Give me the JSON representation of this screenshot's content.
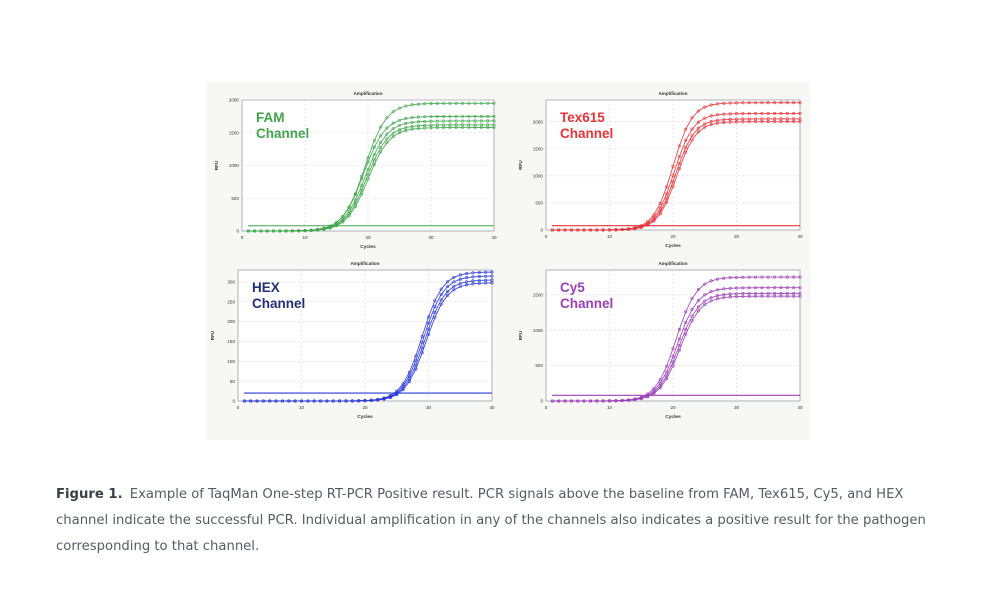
{
  "chart_data": [
    {
      "type": "line",
      "title": "Amplification",
      "xlabel": "Cycles",
      "ylabel": "RFU",
      "xlim": [
        0,
        40
      ],
      "ylim": [
        0,
        2000
      ],
      "xticks": [
        0,
        10,
        20,
        30,
        40
      ],
      "yticks": [
        0,
        500,
        1000,
        1500,
        2000
      ],
      "threshold": 80,
      "channel_label": [
        "FAM",
        "Channel"
      ],
      "color": "#3fa64b",
      "grid": true,
      "series": [
        {
          "plateau": 1950,
          "midpoint": 19.5,
          "slope": 1.7
        },
        {
          "plateau": 1750,
          "midpoint": 19.3,
          "slope": 1.7
        },
        {
          "plateau": 1680,
          "midpoint": 19.6,
          "slope": 1.7
        },
        {
          "plateau": 1620,
          "midpoint": 19.8,
          "slope": 1.7
        },
        {
          "plateau": 1580,
          "midpoint": 20.0,
          "slope": 1.7
        }
      ]
    },
    {
      "type": "line",
      "title": "Amplification",
      "xlabel": "Cycles",
      "ylabel": "RFU",
      "xlim": [
        0,
        40
      ],
      "ylim": [
        0,
        2400
      ],
      "xticks": [
        0,
        10,
        20,
        30,
        40
      ],
      "yticks": [
        0,
        500,
        1000,
        1500,
        2000
      ],
      "threshold": 80,
      "channel_label": [
        "Tex615",
        "Channel"
      ],
      "color": "#e8333a",
      "grid": true,
      "series": [
        {
          "plateau": 2350,
          "midpoint": 20.0,
          "slope": 1.5
        },
        {
          "plateau": 2150,
          "midpoint": 20.2,
          "slope": 1.5
        },
        {
          "plateau": 2050,
          "midpoint": 20.4,
          "slope": 1.5
        },
        {
          "plateau": 2000,
          "midpoint": 20.6,
          "slope": 1.5
        }
      ]
    },
    {
      "type": "line",
      "title": "Amplification",
      "xlabel": "Cycles",
      "ylabel": "RFU",
      "xlim": [
        0,
        40
      ],
      "ylim": [
        0,
        330
      ],
      "xticks": [
        0,
        10,
        20,
        30,
        40
      ],
      "yticks": [
        0,
        50,
        100,
        150,
        200,
        250,
        300
      ],
      "threshold": 20,
      "channel_label": [
        "HEX",
        "Channel"
      ],
      "color": "#2b3ad8",
      "label_color": "#22307a",
      "grid": true,
      "series": [
        {
          "plateau": 325,
          "midpoint": 29.0,
          "slope": 1.6
        },
        {
          "plateau": 315,
          "midpoint": 29.2,
          "slope": 1.6
        },
        {
          "plateau": 305,
          "midpoint": 29.4,
          "slope": 1.6
        },
        {
          "plateau": 298,
          "midpoint": 29.6,
          "slope": 1.6
        }
      ]
    },
    {
      "type": "line",
      "title": "Amplification",
      "xlabel": "Cycles",
      "ylabel": "RFU",
      "xlim": [
        0,
        40
      ],
      "ylim": [
        0,
        1850
      ],
      "xticks": [
        0,
        10,
        20,
        30,
        40
      ],
      "yticks": [
        0,
        500,
        1000,
        1500
      ],
      "threshold": 80,
      "channel_label": [
        "Cy5",
        "Channel"
      ],
      "color": "#9b3fb8",
      "grid": true,
      "series": [
        {
          "plateau": 1750,
          "midpoint": 20.5,
          "slope": 1.6
        },
        {
          "plateau": 1600,
          "midpoint": 20.7,
          "slope": 1.6
        },
        {
          "plateau": 1520,
          "midpoint": 20.9,
          "slope": 1.6
        },
        {
          "plateau": 1480,
          "midpoint": 21.1,
          "slope": 1.6
        }
      ]
    }
  ],
  "caption": {
    "label": "Figure 1.",
    "text": "Example of TaqMan One-step RT-PCR Positive result. PCR signals above the baseline from FAM, Tex615, Cy5, and HEX channel indicate the successful PCR. Individual amplification in any of the channels also indicates a positive result for the pathogen corresponding to that channel."
  }
}
